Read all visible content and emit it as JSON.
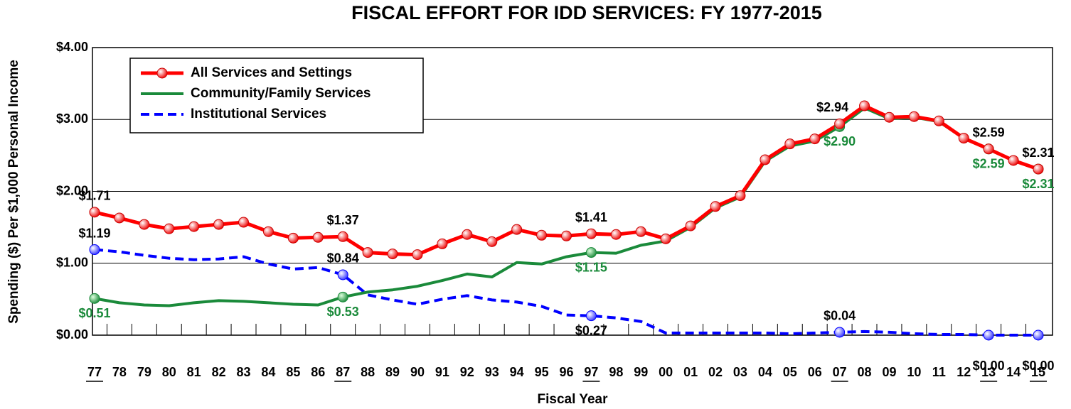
{
  "chart_data": {
    "type": "line",
    "title": "FISCAL EFFORT FOR IDD SERVICES: FY 1977-2015",
    "x_label": "Fiscal Year",
    "y_label": "Spending ($) Per $1,000 Personal Income",
    "categories": [
      "77",
      "78",
      "79",
      "80",
      "81",
      "82",
      "83",
      "84",
      "85",
      "86",
      "87",
      "88",
      "89",
      "90",
      "91",
      "92",
      "93",
      "94",
      "95",
      "96",
      "97",
      "98",
      "99",
      "00",
      "01",
      "02",
      "03",
      "04",
      "05",
      "06",
      "07",
      "08",
      "09",
      "10",
      "11",
      "12",
      "13",
      "14",
      "15"
    ],
    "emphasized_categories": [
      0,
      10,
      20,
      30,
      36,
      38
    ],
    "ylim": [
      0,
      4
    ],
    "yticks": [
      {
        "value": 0,
        "label": "$0.00"
      },
      {
        "value": 1,
        "label": "$1.00"
      },
      {
        "value": 2,
        "label": "$2.00"
      },
      {
        "value": 3,
        "label": "$3.00"
      },
      {
        "value": 4,
        "label": "$4.00"
      }
    ],
    "grid": true,
    "legend": "upper left",
    "series": [
      {
        "name": "All Services and Settings",
        "color": "#ff0000",
        "style": "solid",
        "values": [
          1.71,
          1.63,
          1.54,
          1.48,
          1.51,
          1.54,
          1.57,
          1.44,
          1.35,
          1.36,
          1.37,
          1.15,
          1.13,
          1.12,
          1.27,
          1.4,
          1.3,
          1.47,
          1.39,
          1.38,
          1.41,
          1.4,
          1.44,
          1.34,
          1.52,
          1.79,
          1.94,
          2.44,
          2.66,
          2.73,
          2.94,
          3.19,
          3.03,
          3.04,
          2.98,
          2.74,
          2.59,
          2.43,
          2.31
        ],
        "value_labels": [
          "$1.71",
          null,
          null,
          null,
          null,
          null,
          null,
          null,
          null,
          null,
          "$1.37",
          null,
          null,
          null,
          null,
          null,
          null,
          null,
          null,
          null,
          "$1.41",
          null,
          null,
          null,
          null,
          null,
          null,
          null,
          null,
          null,
          "$2.94",
          null,
          null,
          null,
          null,
          null,
          "$2.59",
          null,
          "$2.31"
        ]
      },
      {
        "name": "Community/Family Services",
        "color": "#1a8a3a",
        "style": "solid",
        "values": [
          0.51,
          0.45,
          0.42,
          0.41,
          0.45,
          0.48,
          0.47,
          0.45,
          0.43,
          0.42,
          0.53,
          0.6,
          0.63,
          0.68,
          0.76,
          0.85,
          0.81,
          1.01,
          0.99,
          1.09,
          1.15,
          1.14,
          1.25,
          1.31,
          1.5,
          1.77,
          1.92,
          2.42,
          2.63,
          2.7,
          2.9,
          3.16,
          3.01,
          3.03,
          2.97,
          2.74,
          2.59,
          2.43,
          2.31
        ],
        "value_labels": [
          "$0.51",
          null,
          null,
          null,
          null,
          null,
          null,
          null,
          null,
          null,
          "$0.53",
          null,
          null,
          null,
          null,
          null,
          null,
          null,
          null,
          null,
          "$1.15",
          null,
          null,
          null,
          null,
          null,
          null,
          null,
          null,
          null,
          "$2.90",
          null,
          null,
          null,
          null,
          null,
          "$2.59",
          null,
          "$2.31"
        ]
      },
      {
        "name": "Institutional Services",
        "color": "#0000ff",
        "style": "dashed",
        "values": [
          1.19,
          1.16,
          1.11,
          1.07,
          1.05,
          1.06,
          1.09,
          0.99,
          0.92,
          0.94,
          0.84,
          0.56,
          0.49,
          0.43,
          0.5,
          0.55,
          0.49,
          0.46,
          0.4,
          0.28,
          0.27,
          0.24,
          0.19,
          0.03,
          0.03,
          0.03,
          0.03,
          0.03,
          0.02,
          0.03,
          0.04,
          0.05,
          0.04,
          0.02,
          0.01,
          0.01,
          0.0,
          0.0,
          0.0
        ],
        "value_labels": [
          "$1.19",
          null,
          null,
          null,
          null,
          null,
          null,
          null,
          null,
          null,
          "$0.84",
          null,
          null,
          null,
          null,
          null,
          null,
          null,
          null,
          null,
          "$0.27",
          null,
          null,
          null,
          null,
          null,
          null,
          null,
          null,
          null,
          "$0.04",
          null,
          null,
          null,
          null,
          null,
          "$0.00",
          null,
          "$0.00"
        ]
      }
    ]
  }
}
